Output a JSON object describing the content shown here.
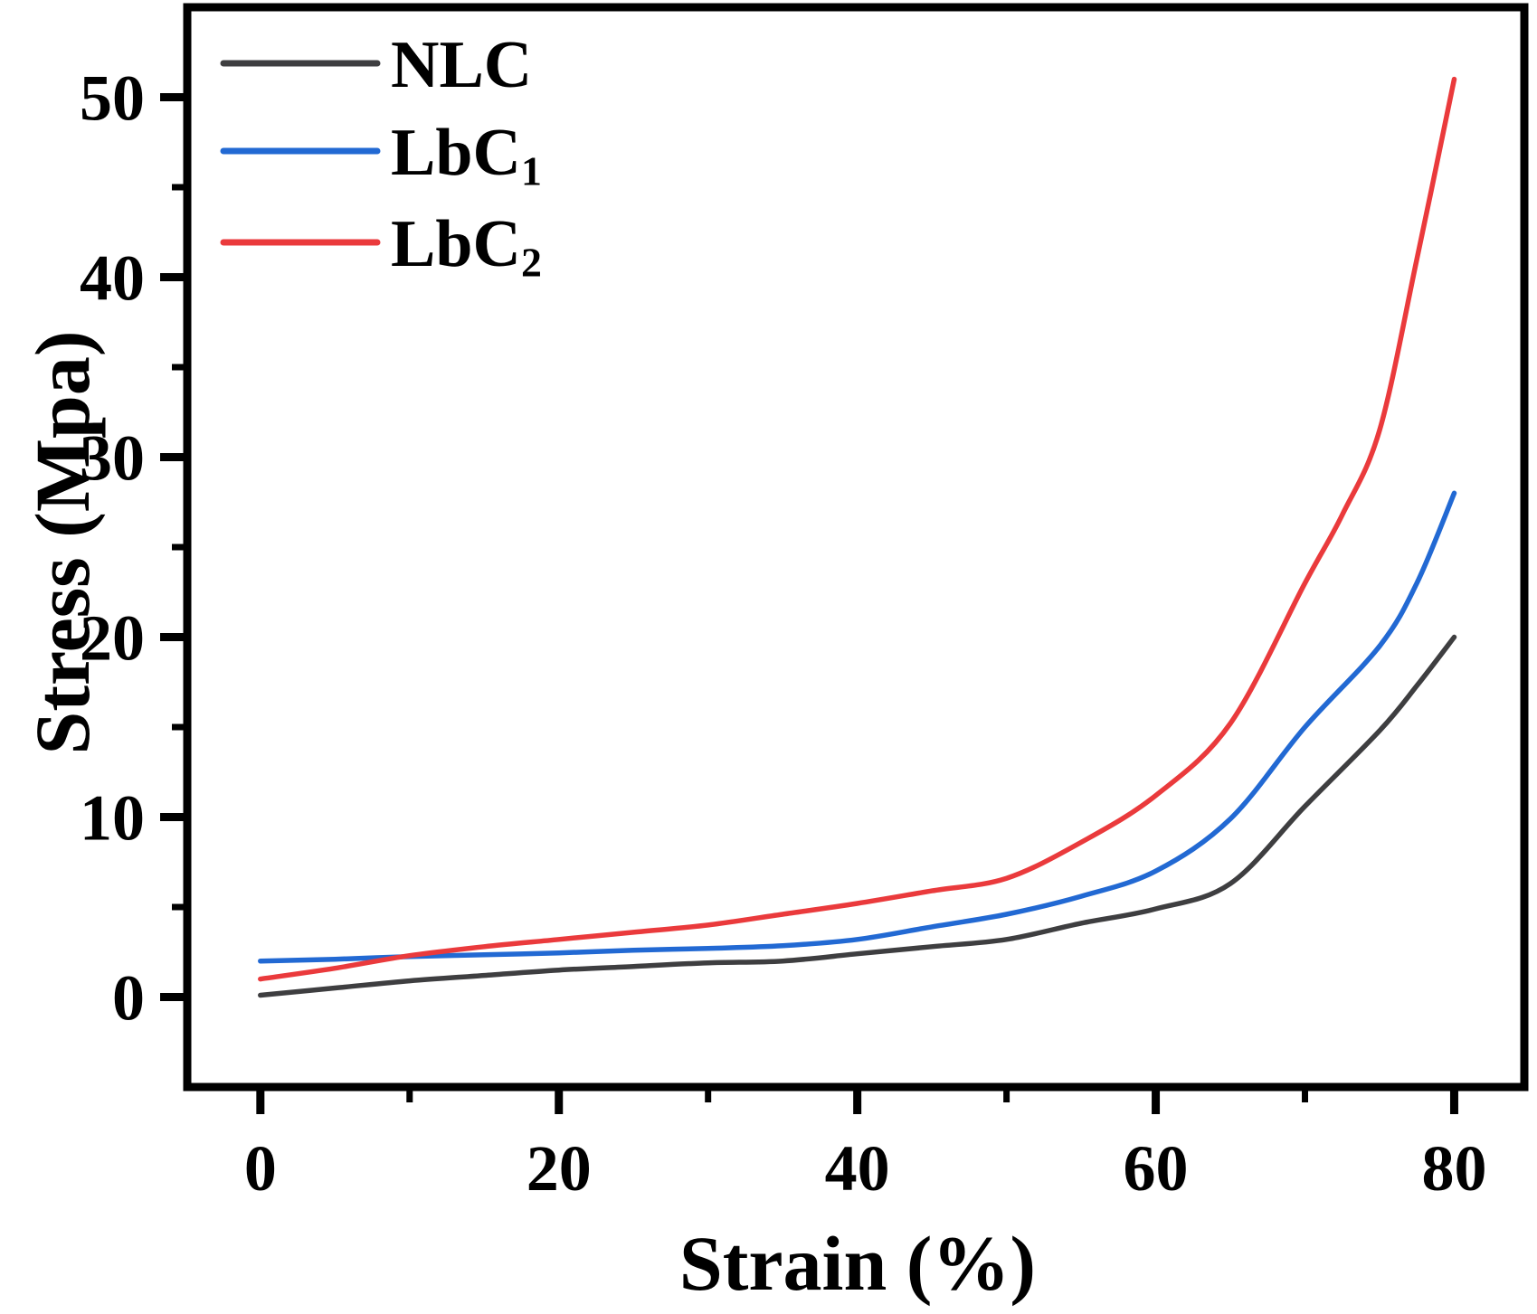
{
  "chart_data": {
    "type": "line",
    "title": "",
    "xlabel": "Strain (%)",
    "ylabel": "Stress (Mpa)",
    "xlim": [
      -4.9,
      84.7
    ],
    "ylim": [
      -5,
      55
    ],
    "x_ticks_major": [
      0,
      20,
      40,
      60,
      80
    ],
    "x_ticks_minor": [
      10,
      30,
      50,
      70
    ],
    "y_ticks_major": [
      0,
      10,
      20,
      30,
      40,
      50
    ],
    "y_ticks_minor": [
      5,
      15,
      25,
      35,
      45
    ],
    "grid": false,
    "legend_position": "top-left",
    "axis_color": "#000000",
    "background_color": "#ffffff",
    "series": [
      {
        "name": "NLC",
        "label_main": "NLC",
        "label_sub": "",
        "color": "#3e3e40",
        "points": [
          [
            0,
            0.1
          ],
          [
            5,
            0.5
          ],
          [
            10,
            0.9
          ],
          [
            15,
            1.2
          ],
          [
            20,
            1.5
          ],
          [
            25,
            1.7
          ],
          [
            30,
            1.9
          ],
          [
            35,
            2.0
          ],
          [
            40,
            2.4
          ],
          [
            45,
            2.8
          ],
          [
            50,
            3.2
          ],
          [
            55,
            4.1
          ],
          [
            60,
            4.9
          ],
          [
            65,
            6.3
          ],
          [
            70,
            10.6
          ],
          [
            75,
            14.8
          ],
          [
            77.5,
            17.3
          ],
          [
            80,
            20.0
          ]
        ]
      },
      {
        "name": "LbC1",
        "label_main": "LbC",
        "label_sub": "1",
        "color": "#2269d3",
        "points": [
          [
            0,
            2.0
          ],
          [
            5,
            2.1
          ],
          [
            10,
            2.25
          ],
          [
            15,
            2.35
          ],
          [
            20,
            2.45
          ],
          [
            25,
            2.6
          ],
          [
            30,
            2.7
          ],
          [
            35,
            2.85
          ],
          [
            40,
            3.2
          ],
          [
            45,
            3.9
          ],
          [
            50,
            4.6
          ],
          [
            55,
            5.6
          ],
          [
            60,
            7.0
          ],
          [
            65,
            9.9
          ],
          [
            70,
            15.0
          ],
          [
            75,
            19.5
          ],
          [
            77.5,
            23.0
          ],
          [
            80,
            28.0
          ]
        ]
      },
      {
        "name": "LbC2",
        "label_main": "LbC",
        "label_sub": "2",
        "color": "#ea3a3c",
        "points": [
          [
            0,
            1.0
          ],
          [
            5,
            1.6
          ],
          [
            10,
            2.3
          ],
          [
            15,
            2.8
          ],
          [
            20,
            3.2
          ],
          [
            25,
            3.6
          ],
          [
            30,
            4.0
          ],
          [
            35,
            4.6
          ],
          [
            40,
            5.2
          ],
          [
            45,
            5.9
          ],
          [
            50,
            6.6
          ],
          [
            55,
            8.6
          ],
          [
            60,
            11.2
          ],
          [
            65,
            15.2
          ],
          [
            70,
            23.0
          ],
          [
            72.5,
            26.8
          ],
          [
            75,
            31.5
          ],
          [
            77.5,
            41.0
          ],
          [
            80,
            51.0
          ]
        ]
      }
    ]
  }
}
